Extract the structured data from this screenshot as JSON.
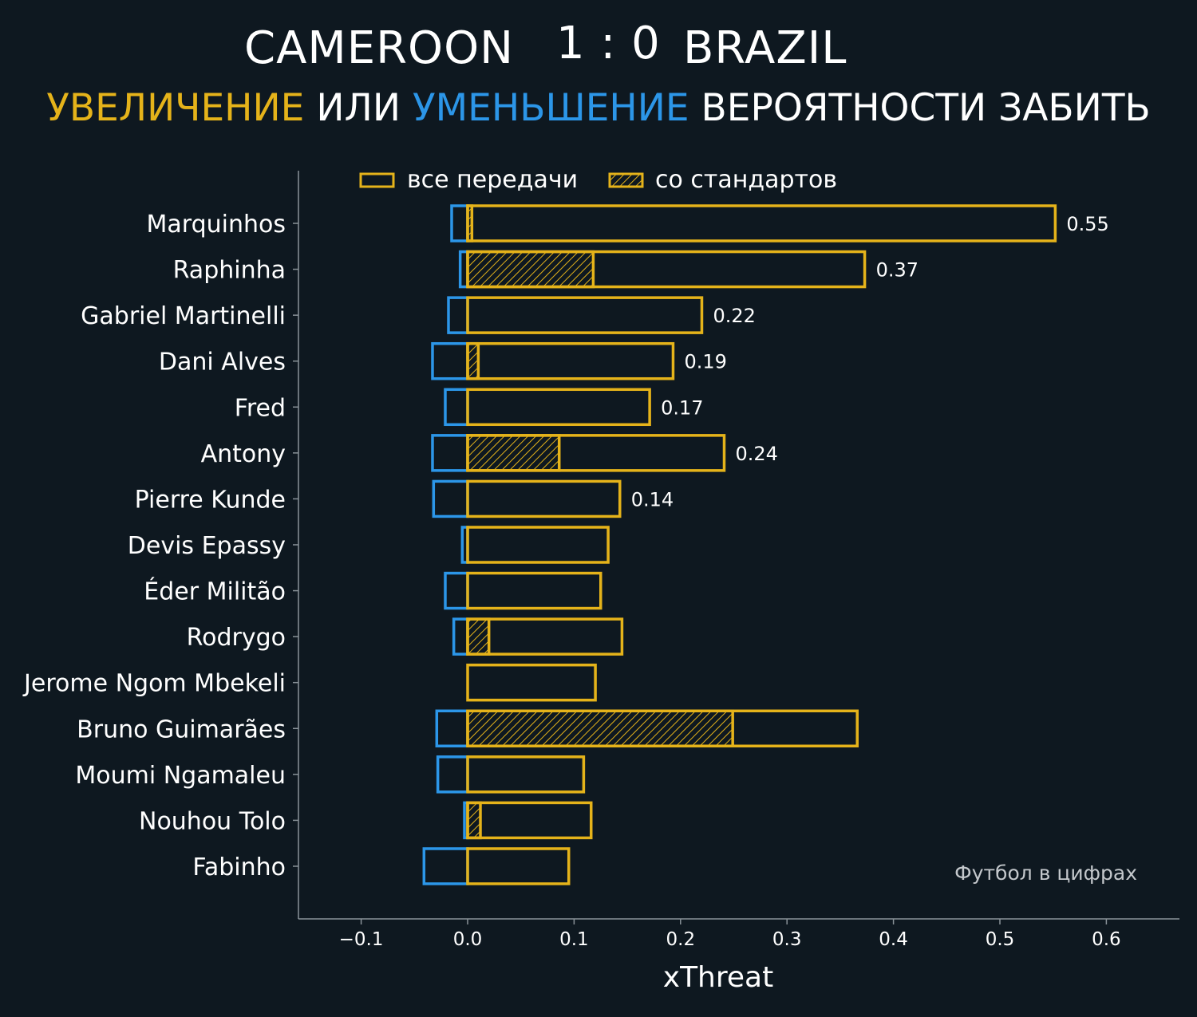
{
  "header": {
    "team_home": "CAMEROON",
    "score": "1 : 0",
    "team_away": "BRAZIL",
    "subtitle_increase": "УВЕЛИЧЕНИЕ",
    "subtitle_or": "ИЛИ",
    "subtitle_decrease": "УМЕНЬШЕНИЕ",
    "subtitle_rest": "ВЕРОЯТНОСТИ ЗАБИТЬ"
  },
  "watermark": "Футбол в цифрах",
  "colors": {
    "increase": "#e5b31a",
    "decrease": "#2c96e8",
    "background": "#0e1820",
    "axis": "#8a9399",
    "text": "#ffffff"
  },
  "chart_data": {
    "type": "bar",
    "orientation": "horizontal",
    "xlabel": "xThreat",
    "xlim": [
      -0.16,
      0.67
    ],
    "xticks": [
      -0.1,
      0.0,
      0.1,
      0.2,
      0.3,
      0.4,
      0.5,
      0.6
    ],
    "xtick_labels": [
      "−0.1",
      "0.0",
      "0.1",
      "0.2",
      "0.3",
      "0.4",
      "0.5",
      "0.6"
    ],
    "grid": false,
    "legend": {
      "placement": "top",
      "entries": [
        "все передачи",
        "со стандартов"
      ]
    },
    "categories": [
      "Marquinhos",
      "Raphinha",
      "Gabriel Martinelli",
      "Dani Alves",
      "Fred",
      "Antony",
      "Pierre Kunde",
      "Devis Epassy",
      "Éder Militão",
      "Rodrygo",
      "Jerome Ngom Mbekeli",
      "Bruno Guimarães",
      "Moumi Ngamaleu",
      "Nouhou Tolo",
      "Fabinho"
    ],
    "series": [
      {
        "name": "все передачи",
        "values": [
          0.552,
          0.373,
          0.22,
          0.193,
          0.171,
          0.241,
          0.143,
          0.132,
          0.125,
          0.145,
          0.12,
          0.366,
          0.109,
          0.116,
          0.095
        ]
      },
      {
        "name": "со стандартов",
        "values": [
          0.004,
          0.118,
          0.0,
          0.01,
          0.0,
          0.086,
          0.0,
          0.0,
          0.0,
          0.02,
          0.0,
          0.249,
          0.0,
          0.012,
          0.0
        ]
      },
      {
        "values": [
          -0.015,
          -0.007,
          -0.018,
          -0.033,
          -0.021,
          -0.033,
          -0.032,
          -0.005,
          -0.021,
          -0.013,
          0.0,
          -0.029,
          -0.028,
          -0.003,
          -0.041
        ]
      }
    ],
    "value_labels": [
      "0.55",
      "0.37",
      "0.22",
      "0.19",
      "0.17",
      "0.24",
      "0.14",
      "",
      "",
      "",
      "",
      "",
      "",
      "",
      ""
    ]
  }
}
